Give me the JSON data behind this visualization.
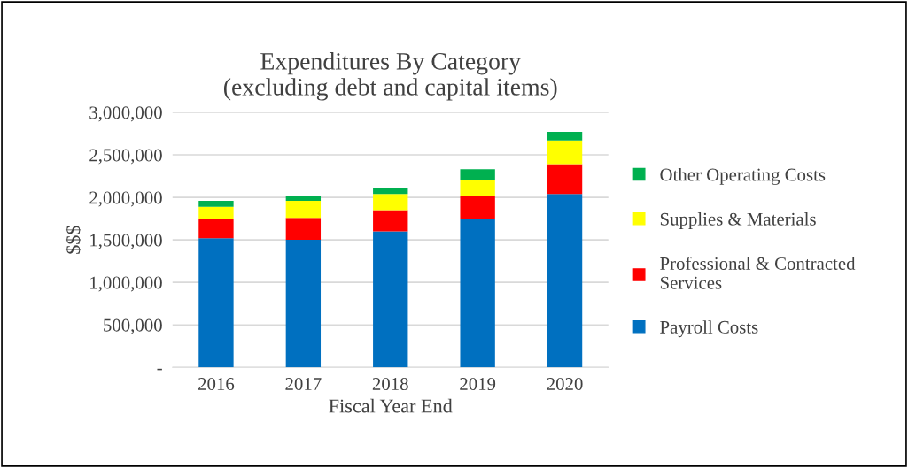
{
  "chart_data": {
    "type": "bar",
    "stacked": true,
    "title": "Expenditures By Category\n(excluding debt and capital items)",
    "xlabel": "Fiscal Year End",
    "ylabel": "$$$",
    "categories": [
      "2016",
      "2017",
      "2018",
      "2019",
      "2020"
    ],
    "series": [
      {
        "name": "Payroll Costs",
        "color": "#0070c0",
        "values": [
          1520000,
          1500000,
          1600000,
          1750000,
          2040000
        ]
      },
      {
        "name": "Professional & Contracted Services",
        "color": "#ff0000",
        "values": [
          220000,
          260000,
          250000,
          270000,
          350000
        ]
      },
      {
        "name": "Supplies & Materials",
        "color": "#ffff00",
        "values": [
          150000,
          200000,
          190000,
          190000,
          280000
        ]
      },
      {
        "name": "Other Operating Costs",
        "color": "#00b050",
        "values": [
          70000,
          60000,
          70000,
          120000,
          100000
        ]
      }
    ],
    "ylim": [
      0,
      3000000
    ],
    "yticks": [
      {
        "value": 0,
        "label": "-"
      },
      {
        "value": 500000,
        "label": "500,000"
      },
      {
        "value": 1000000,
        "label": "1,000,000"
      },
      {
        "value": 1500000,
        "label": "1,500,000"
      },
      {
        "value": 2000000,
        "label": "2,000,000"
      },
      {
        "value": 2500000,
        "label": "2,500,000"
      },
      {
        "value": 3000000,
        "label": "3,000,000"
      }
    ],
    "grid": "y",
    "legend": "right"
  }
}
